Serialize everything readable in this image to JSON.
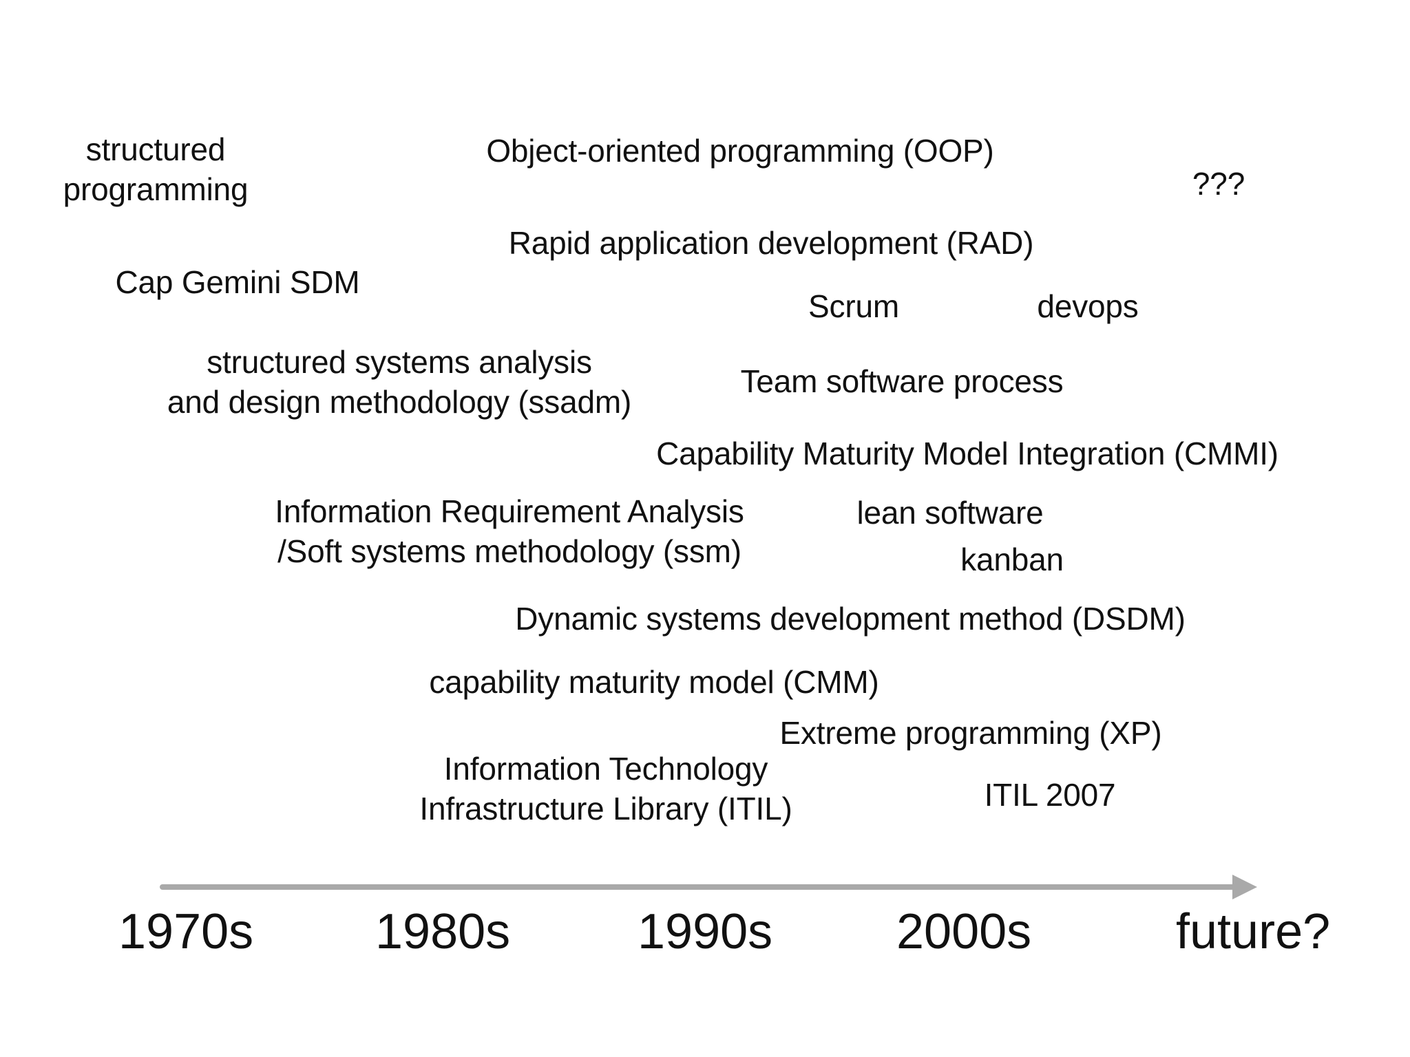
{
  "methodologies": {
    "structured_programming": [
      "structured",
      "programming"
    ],
    "cap_gemini": "Cap Gemini SDM",
    "ssadm": [
      "structured systems analysis",
      "and design methodology (ssadm)"
    ],
    "ssm": [
      "Information Requirement Analysis",
      "/Soft systems methodology (ssm)"
    ],
    "oop": "Object-oriented programming (OOP)",
    "rad": "Rapid application development (RAD)",
    "scrum": "Scrum",
    "devops": "devops",
    "unknown": "???",
    "tsp": "Team software process",
    "cmmi": "Capability Maturity Model Integration (CMMI)",
    "lean": "lean software",
    "kanban": "kanban",
    "dsdm": "Dynamic systems development method (DSDM)",
    "cmm": "capability maturity model (CMM)",
    "xp": "Extreme programming (XP)",
    "itil": [
      "Information Technology",
      "Infrastructure Library (ITIL)"
    ],
    "itil2007": "ITIL 2007"
  },
  "timeline": {
    "eras": [
      "1970s",
      "1980s",
      "1990s",
      "2000s",
      "future?"
    ],
    "arrow_color": "#a9a9a9"
  }
}
